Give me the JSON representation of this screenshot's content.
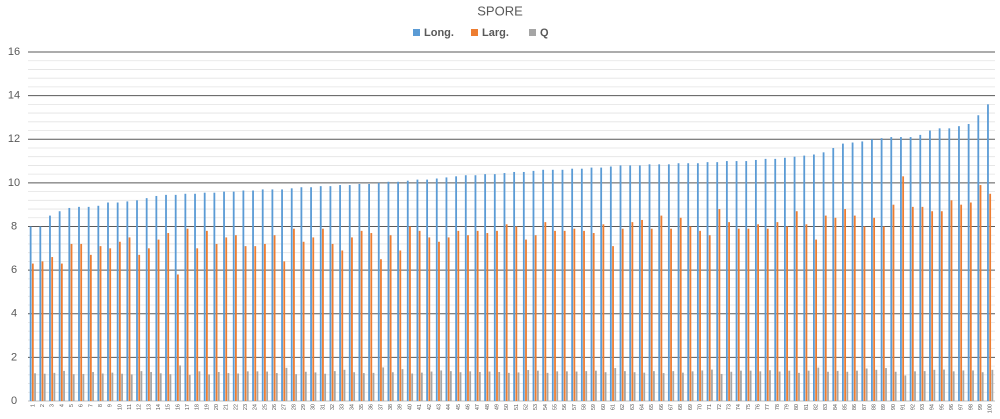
{
  "chart_data": {
    "type": "bar",
    "title": "SPORE",
    "categories": [
      "1",
      "2",
      "3",
      "4",
      "5",
      "6",
      "7",
      "8",
      "9",
      "10",
      "11",
      "12",
      "13",
      "14",
      "15",
      "16",
      "17",
      "18",
      "19",
      "20",
      "21",
      "22",
      "23",
      "24",
      "25",
      "26",
      "27",
      "28",
      "29",
      "30",
      "31",
      "32",
      "33",
      "34",
      "35",
      "36",
      "37",
      "38",
      "39",
      "40",
      "41",
      "42",
      "43",
      "44",
      "45",
      "46",
      "47",
      "48",
      "49",
      "50",
      "51",
      "52",
      "53",
      "54",
      "55",
      "56",
      "57",
      "58",
      "59",
      "60",
      "61",
      "62",
      "63",
      "64",
      "65",
      "66",
      "67",
      "68",
      "69",
      "70",
      "71",
      "72",
      "73",
      "74",
      "75",
      "76",
      "77",
      "78",
      "79",
      "80",
      "81",
      "82",
      "83",
      "84",
      "85",
      "86",
      "87",
      "88",
      "89",
      "90",
      "91",
      "92",
      "93",
      "94",
      "95",
      "96",
      "97",
      "98",
      "99",
      "100"
    ],
    "series": [
      {
        "name": "Long.",
        "color": "#5b9bd5",
        "values": [
          8.0,
          8.0,
          8.5,
          8.7,
          8.85,
          8.9,
          8.9,
          8.95,
          9.1,
          9.1,
          9.15,
          9.2,
          9.3,
          9.4,
          9.45,
          9.45,
          9.5,
          9.5,
          9.55,
          9.55,
          9.6,
          9.6,
          9.65,
          9.65,
          9.7,
          9.7,
          9.7,
          9.75,
          9.8,
          9.8,
          9.85,
          9.85,
          9.9,
          9.9,
          9.95,
          9.95,
          10.0,
          10.05,
          10.05,
          10.1,
          10.15,
          10.15,
          10.2,
          10.25,
          10.3,
          10.35,
          10.35,
          10.4,
          10.4,
          10.45,
          10.5,
          10.5,
          10.55,
          10.6,
          10.6,
          10.6,
          10.65,
          10.65,
          10.7,
          10.7,
          10.75,
          10.8,
          10.8,
          10.8,
          10.85,
          10.85,
          10.85,
          10.9,
          10.9,
          10.9,
          10.95,
          10.95,
          11.0,
          11.0,
          11.0,
          11.05,
          11.1,
          11.1,
          11.15,
          11.2,
          11.25,
          11.3,
          11.4,
          11.6,
          11.8,
          11.85,
          11.9,
          12.0,
          12.05,
          12.1,
          12.1,
          12.1,
          12.2,
          12.4,
          12.5,
          12.5,
          12.6,
          12.7,
          13.1,
          13.6
        ]
      },
      {
        "name": "Larg.",
        "color": "#ed7d31",
        "values": [
          6.3,
          6.4,
          6.6,
          6.3,
          7.2,
          7.2,
          6.7,
          7.1,
          7.0,
          7.3,
          7.5,
          6.7,
          7.0,
          7.4,
          7.7,
          5.8,
          7.9,
          7.0,
          7.8,
          7.2,
          7.5,
          7.6,
          7.1,
          7.1,
          7.2,
          7.6,
          6.4,
          7.9,
          7.3,
          7.5,
          7.9,
          7.2,
          6.9,
          7.5,
          7.8,
          7.7,
          6.5,
          7.6,
          6.9,
          8.0,
          7.8,
          7.5,
          7.3,
          7.5,
          7.8,
          7.6,
          7.8,
          7.7,
          7.8,
          8.1,
          8.0,
          7.4,
          7.6,
          8.2,
          7.8,
          7.8,
          7.9,
          7.8,
          7.7,
          8.1,
          7.1,
          7.9,
          8.2,
          8.3,
          7.9,
          8.5,
          7.9,
          8.4,
          8.0,
          7.8,
          7.6,
          8.8,
          8.2,
          7.9,
          7.9,
          8.1,
          7.9,
          8.2,
          8.0,
          8.7,
          8.1,
          7.4,
          8.5,
          8.4,
          8.8,
          8.5,
          8.0,
          8.4,
          8.0,
          9.0,
          10.3,
          8.9,
          8.9,
          8.7,
          8.7,
          9.2,
          9.0,
          9.1,
          9.9,
          9.5
        ]
      },
      {
        "name": "Q",
        "color": "#a5a5a5",
        "values": [
          1.27,
          1.25,
          1.29,
          1.38,
          1.23,
          1.24,
          1.33,
          1.26,
          1.3,
          1.25,
          1.22,
          1.37,
          1.33,
          1.27,
          1.23,
          1.63,
          1.2,
          1.36,
          1.22,
          1.33,
          1.28,
          1.26,
          1.36,
          1.36,
          1.35,
          1.28,
          1.52,
          1.23,
          1.34,
          1.31,
          1.25,
          1.37,
          1.43,
          1.32,
          1.28,
          1.29,
          1.54,
          1.32,
          1.46,
          1.26,
          1.3,
          1.35,
          1.4,
          1.37,
          1.32,
          1.36,
          1.33,
          1.35,
          1.33,
          1.29,
          1.31,
          1.42,
          1.39,
          1.29,
          1.36,
          1.36,
          1.35,
          1.37,
          1.39,
          1.32,
          1.51,
          1.37,
          1.32,
          1.3,
          1.37,
          1.28,
          1.37,
          1.3,
          1.36,
          1.4,
          1.44,
          1.24,
          1.34,
          1.39,
          1.39,
          1.36,
          1.41,
          1.35,
          1.39,
          1.29,
          1.39,
          1.53,
          1.34,
          1.38,
          1.34,
          1.39,
          1.49,
          1.43,
          1.51,
          1.34,
          1.17,
          1.36,
          1.37,
          1.43,
          1.44,
          1.36,
          1.4,
          1.4,
          1.32,
          1.43
        ]
      }
    ],
    "ylim": [
      0,
      16
    ],
    "yticks": [
      0,
      2,
      4,
      6,
      8,
      10,
      12,
      14,
      16
    ],
    "grid": true,
    "legend": "top"
  }
}
